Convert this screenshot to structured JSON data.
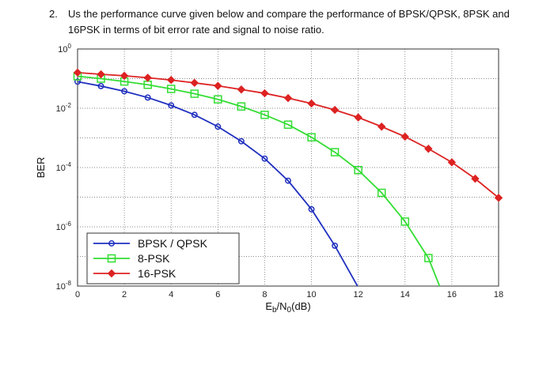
{
  "question": {
    "number": "2.",
    "text": "Us the performance curve given below and compare the performance of BPSK/QPSK, 8PSK and 16PSK in terms of bit error rate and signal to noise ratio."
  },
  "chart_data": {
    "type": "line",
    "title": "",
    "xlabel": "Eb/N0(dB)",
    "xlabel_parts": {
      "base1": "E",
      "sub1": "b",
      "mid": "/N",
      "sub2": "0",
      "tail": "(dB)"
    },
    "ylabel": "BER",
    "xlim": [
      0,
      18
    ],
    "ylim_exp": [
      -8,
      0
    ],
    "yscale": "log",
    "x_ticks": [
      "0",
      "2",
      "4",
      "6",
      "8",
      "10",
      "12",
      "14",
      "16",
      "18"
    ],
    "y_ticks": [
      {
        "base": "10",
        "exp": "0"
      },
      {
        "base": "10",
        "exp": "-2"
      },
      {
        "base": "10",
        "exp": "-4"
      },
      {
        "base": "10",
        "exp": "-6"
      },
      {
        "base": "10",
        "exp": "-8"
      }
    ],
    "grid": true,
    "legend_position": "bottom-left",
    "series": [
      {
        "name": "BPSK / QPSK",
        "color": "#1f2fbf",
        "marker": "circle",
        "x": [
          0,
          1,
          2,
          3,
          4,
          5,
          6,
          7,
          8,
          9,
          10,
          11,
          12
        ],
        "y": [
          0.079,
          0.056,
          0.0375,
          0.023,
          0.0125,
          0.006,
          0.0024,
          0.00077,
          0.0002,
          3.6e-05,
          3.9e-06,
          2.3e-07,
          9e-09
        ]
      },
      {
        "name": "8-PSK",
        "color": "#33dd33",
        "marker": "square",
        "x": [
          0,
          1,
          2,
          3,
          4,
          5,
          6,
          7,
          8,
          9,
          10,
          11,
          12,
          13,
          14,
          15,
          15.5
        ],
        "y": [
          0.12,
          0.1,
          0.08,
          0.062,
          0.045,
          0.031,
          0.02,
          0.0115,
          0.006,
          0.0028,
          0.00105,
          0.00033,
          8.2e-05,
          1.4e-05,
          1.5e-06,
          8.8e-08,
          9e-09
        ]
      },
      {
        "name": "16-PSK",
        "color": "#dd2222",
        "marker": "diamond",
        "x": [
          0,
          1,
          2,
          3,
          4,
          5,
          6,
          7,
          8,
          9,
          10,
          11,
          12,
          13,
          14,
          15,
          16,
          17,
          18
        ],
        "y": [
          0.16,
          0.14,
          0.125,
          0.107,
          0.09,
          0.072,
          0.057,
          0.043,
          0.032,
          0.022,
          0.0145,
          0.0088,
          0.0049,
          0.0024,
          0.0011,
          0.00043,
          0.00015,
          4.2e-05,
          9.5e-06
        ]
      }
    ]
  }
}
